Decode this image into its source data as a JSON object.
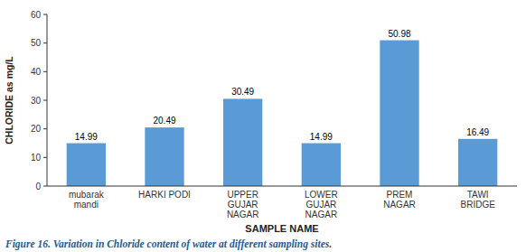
{
  "chart_data": {
    "type": "bar",
    "categories": [
      "mubarak\nmandi",
      "HARKI PODI",
      "UPPER\nGUJAR\nNAGAR",
      "LOWER\nGUJAR\nNAGAR",
      "PREM\nNAGAR",
      "TAWI\nBRIDGE"
    ],
    "values": [
      14.99,
      20.49,
      30.49,
      14.99,
      50.98,
      16.49
    ],
    "color": "#5b9bd5",
    "xlabel": "SAMPLE NAME",
    "ylabel": "CHLORIDE as mg/L",
    "caption": "Figure 16. Variation in Chloride content of water at different sampling sites.",
    "ylim": [
      0,
      60
    ],
    "yticks": [
      0,
      10,
      20,
      30,
      40,
      50,
      60
    ],
    "grid": false,
    "data_labels": true
  }
}
